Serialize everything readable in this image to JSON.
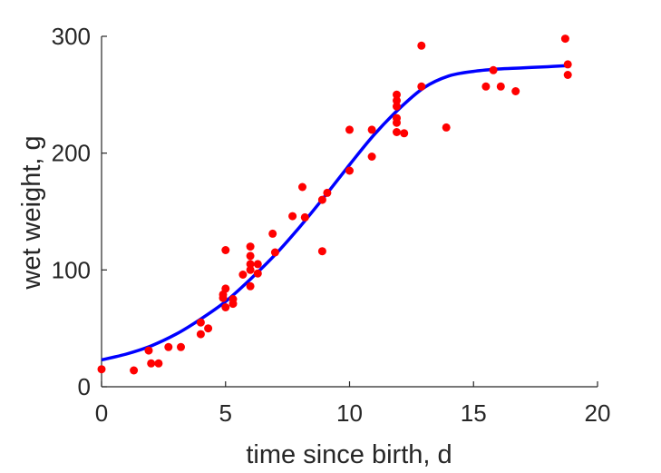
{
  "chart_data": {
    "type": "scatter",
    "xlabel": "time since birth, d",
    "ylabel": "wet weight, g",
    "xlim": [
      0,
      20
    ],
    "ylim": [
      0,
      300
    ],
    "xticks": [
      0,
      5,
      10,
      15,
      20
    ],
    "yticks": [
      0,
      100,
      200,
      300
    ],
    "grid": false,
    "legend": "none",
    "series": [
      {
        "kind": "points",
        "color": "#ff0000",
        "points": [
          [
            0,
            15
          ],
          [
            1.3,
            14
          ],
          [
            1.9,
            31
          ],
          [
            2.0,
            20
          ],
          [
            2.3,
            20
          ],
          [
            2.7,
            34
          ],
          [
            3.2,
            34
          ],
          [
            4.0,
            45
          ],
          [
            4.0,
            55
          ],
          [
            4.3,
            50
          ],
          [
            4.9,
            76
          ],
          [
            4.9,
            79
          ],
          [
            5.0,
            117
          ],
          [
            5.0,
            84
          ],
          [
            5.0,
            68
          ],
          [
            5.3,
            75
          ],
          [
            5.3,
            71
          ],
          [
            5.7,
            96
          ],
          [
            6.0,
            120
          ],
          [
            6.0,
            112
          ],
          [
            6.0,
            105
          ],
          [
            6.0,
            100
          ],
          [
            6.0,
            86
          ],
          [
            6.3,
            105
          ],
          [
            6.3,
            97
          ],
          [
            6.9,
            131
          ],
          [
            7.0,
            115
          ],
          [
            7.7,
            146
          ],
          [
            8.1,
            171
          ],
          [
            8.2,
            145
          ],
          [
            8.9,
            160
          ],
          [
            8.9,
            116
          ],
          [
            9.1,
            166
          ],
          [
            10.0,
            220
          ],
          [
            10.0,
            185
          ],
          [
            10.9,
            220
          ],
          [
            10.9,
            197
          ],
          [
            11.9,
            250
          ],
          [
            11.9,
            245
          ],
          [
            11.9,
            240
          ],
          [
            11.9,
            230
          ],
          [
            11.9,
            226
          ],
          [
            11.9,
            218
          ],
          [
            12.2,
            217
          ],
          [
            12.9,
            292
          ],
          [
            12.9,
            257
          ],
          [
            13.9,
            222
          ],
          [
            15.5,
            257
          ],
          [
            15.8,
            271
          ],
          [
            16.1,
            257
          ],
          [
            16.7,
            253
          ],
          [
            18.7,
            298
          ],
          [
            18.8,
            276
          ],
          [
            18.8,
            267
          ]
        ]
      },
      {
        "kind": "curve",
        "color": "#0000ff",
        "points": [
          [
            0,
            23
          ],
          [
            1,
            28
          ],
          [
            2,
            35
          ],
          [
            3,
            45
          ],
          [
            4,
            58
          ],
          [
            5,
            73
          ],
          [
            6,
            92
          ],
          [
            7,
            113
          ],
          [
            8,
            137
          ],
          [
            9,
            163
          ],
          [
            10,
            190
          ],
          [
            11,
            216
          ],
          [
            12,
            238
          ],
          [
            13,
            256
          ],
          [
            14,
            266
          ],
          [
            15,
            270
          ],
          [
            16,
            272
          ],
          [
            17,
            273
          ],
          [
            18,
            274
          ],
          [
            18.8,
            275
          ]
        ]
      }
    ]
  }
}
